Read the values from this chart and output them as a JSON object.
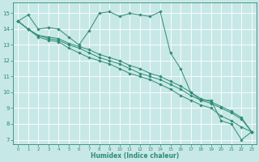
{
  "xlabel": "Humidex (Indice chaleur)",
  "bg_color": "#c8e8e8",
  "grid_color": "#ffffff",
  "line_color": "#2e8b74",
  "xlim": [
    -0.5,
    23.5
  ],
  "ylim": [
    6.7,
    15.7
  ],
  "yticks": [
    7,
    8,
    9,
    10,
    11,
    12,
    13,
    14,
    15
  ],
  "xticks": [
    0,
    1,
    2,
    3,
    4,
    5,
    6,
    7,
    8,
    9,
    10,
    11,
    12,
    13,
    14,
    15,
    16,
    17,
    18,
    19,
    20,
    21,
    22,
    23
  ],
  "series": [
    [
      14.5,
      14.9,
      14.0,
      14.1,
      14.0,
      13.5,
      13.0,
      13.9,
      15.0,
      15.1,
      14.8,
      15.0,
      14.9,
      14.8,
      15.1,
      12.5,
      11.5,
      10.0,
      9.5,
      9.5,
      8.2,
      8.0,
      7.0,
      7.5
    ],
    [
      14.5,
      14.0,
      13.5,
      13.3,
      13.2,
      12.8,
      12.5,
      12.2,
      12.0,
      11.8,
      11.5,
      11.2,
      11.0,
      10.8,
      10.5,
      10.2,
      9.8,
      9.5,
      9.2,
      9.0,
      8.5,
      8.2,
      7.8,
      7.5
    ],
    [
      14.5,
      14.0,
      13.6,
      13.4,
      13.3,
      13.0,
      12.8,
      12.5,
      12.2,
      12.0,
      11.8,
      11.5,
      11.2,
      11.0,
      10.8,
      10.5,
      10.2,
      9.8,
      9.5,
      9.3,
      9.0,
      8.7,
      8.3,
      7.5
    ],
    [
      14.5,
      14.0,
      13.6,
      13.5,
      13.4,
      13.1,
      12.9,
      12.7,
      12.4,
      12.2,
      12.0,
      11.7,
      11.5,
      11.2,
      11.0,
      10.7,
      10.4,
      10.0,
      9.6,
      9.4,
      9.1,
      8.8,
      8.4,
      7.5
    ]
  ]
}
